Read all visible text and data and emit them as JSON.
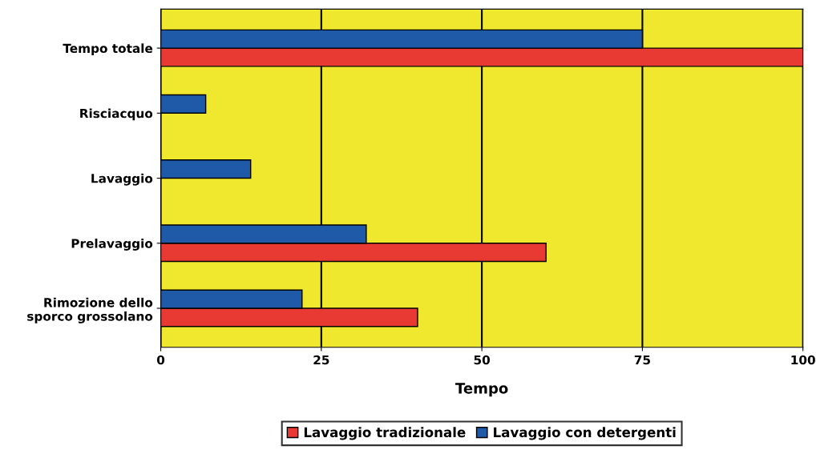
{
  "chart_data": {
    "type": "bar",
    "orientation": "horizontal",
    "xlabel": "Tempo",
    "categories": [
      "Tempo totale",
      "Risciacquo",
      "Lavaggio",
      "Prelavaggio",
      "Rimozione dello\nsporco grossolano"
    ],
    "series": [
      {
        "name": "Lavaggio tradizionale",
        "color": "#e83a32",
        "values": [
          100,
          0,
          0,
          60,
          40
        ]
      },
      {
        "name": "Lavaggio con detergenti",
        "color": "#1f5aa8",
        "values": [
          75,
          7,
          14,
          32,
          22
        ]
      }
    ],
    "xlim": [
      0,
      100
    ],
    "xticks": [
      0,
      25,
      50,
      75,
      100
    ],
    "grid": "x",
    "legend": "bottom"
  }
}
